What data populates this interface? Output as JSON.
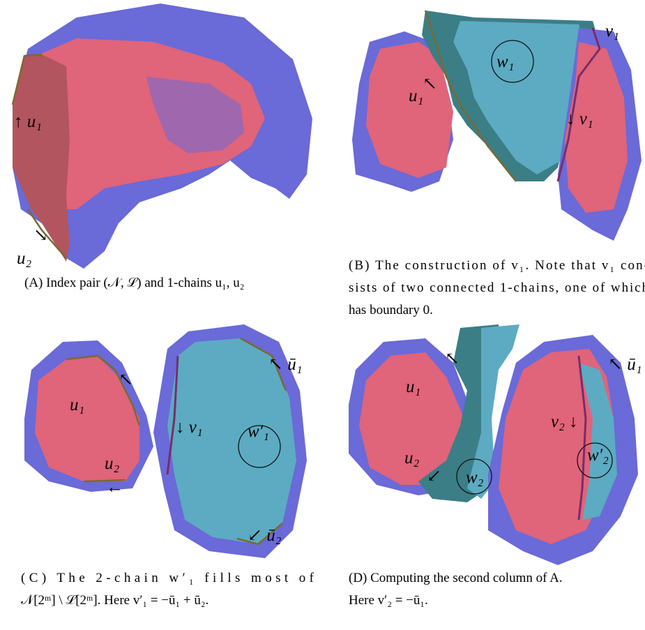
{
  "panels": [
    {
      "labels": [
        "↑ u₁",
        "↘",
        "u₂"
      ],
      "caption": [
        "(A) Index pair (𝒩, ℒ) and 1-chains u₁, u₂"
      ]
    },
    {
      "labels": [
        "v₁",
        "↖",
        "u₁",
        "w₁",
        "↓ v₁"
      ],
      "caption": [
        "(B) The construction of v₁. Note that v₁ con-",
        "sists of two connected 1-chains, one of which",
        "has boundary 0."
      ]
    },
    {
      "labels": [
        "u₁",
        "↖",
        "u₂",
        "←",
        "↖ ū₁",
        "↓ v₁",
        "w′₁",
        "↙ ū₂"
      ],
      "caption": [
        "(C)  The  2-chain  w′₁  fills  most  of",
        "𝒩[2ᵐ] \\ ℒ[2ᵐ]. Here v′₁ = −ū₁ + ū₂."
      ]
    },
    {
      "labels": [
        "u₁",
        "↖",
        "u₂",
        "↙",
        "w₂",
        "↖ ū₁",
        "v₂ ↓",
        "w′₂"
      ],
      "caption": [
        "(D) Computing the second column of A.",
        "Here v′₂ = −ū₁."
      ]
    }
  ]
}
